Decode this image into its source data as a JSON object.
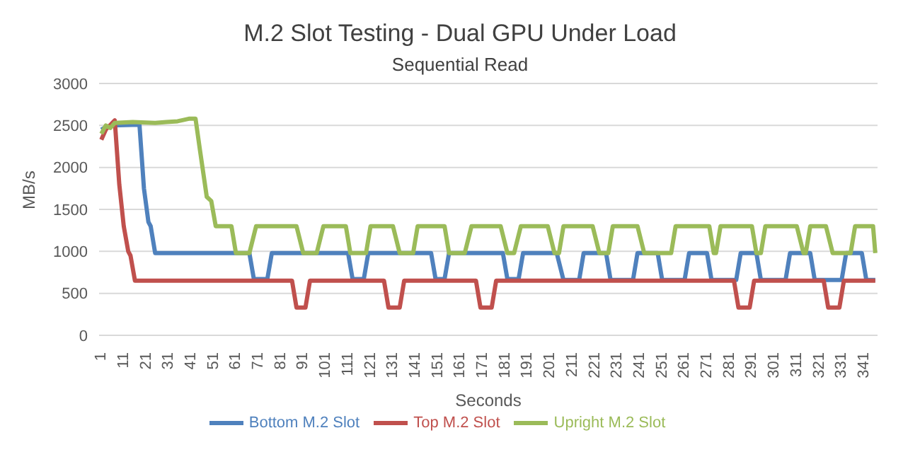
{
  "chart_data": {
    "type": "line",
    "title": "M.2 Slot Testing - Dual GPU Under Load",
    "subtitle": "Sequential Read",
    "xlabel": "Seconds",
    "ylabel": "MB/s",
    "xlim": [
      0,
      347
    ],
    "xticks": [
      1,
      11,
      21,
      31,
      41,
      51,
      61,
      71,
      81,
      91,
      101,
      111,
      121,
      131,
      141,
      151,
      161,
      171,
      181,
      191,
      201,
      211,
      221,
      231,
      241,
      251,
      261,
      271,
      281,
      291,
      301,
      311,
      321,
      331,
      341
    ],
    "ylim": [
      0,
      3000
    ],
    "yticks": [
      0,
      500,
      1000,
      1500,
      2000,
      2500,
      3000
    ],
    "grid": "y",
    "legend": "bottom",
    "marker": "none",
    "line_style": "solid",
    "series": [
      {
        "name": "Bottom M.2 Slot",
        "color": "#4f81bd",
        "x": [
          1,
          3,
          6,
          18,
          20,
          22,
          23,
          25,
          67,
          69,
          75,
          77,
          111,
          113,
          118,
          120,
          148,
          150,
          154,
          156,
          180,
          182,
          187,
          189,
          204,
          207,
          214,
          216,
          226,
          228,
          238,
          240,
          249,
          251,
          261,
          263,
          271,
          273,
          284,
          286,
          293,
          295,
          306,
          308,
          317,
          319,
          331,
          333,
          340,
          342,
          346
        ],
        "values": [
          2450,
          2480,
          2500,
          2510,
          1750,
          1350,
          1300,
          980,
          980,
          670,
          670,
          980,
          980,
          670,
          670,
          980,
          980,
          670,
          670,
          980,
          980,
          670,
          670,
          980,
          980,
          660,
          660,
          980,
          980,
          660,
          660,
          980,
          980,
          660,
          660,
          980,
          980,
          660,
          660,
          980,
          980,
          660,
          660,
          980,
          980,
          660,
          660,
          980,
          980,
          660,
          660
        ]
      },
      {
        "name": "Top M.2 Slot",
        "color": "#c0504d",
        "x": [
          1,
          3,
          7,
          9,
          11,
          13,
          14,
          16,
          86,
          88,
          92,
          94,
          127,
          129,
          134,
          136,
          168,
          170,
          175,
          177,
          283,
          285,
          290,
          292,
          323,
          325,
          330,
          332,
          346
        ],
        "values": [
          2330,
          2450,
          2560,
          1800,
          1300,
          1000,
          950,
          650,
          650,
          330,
          330,
          650,
          650,
          330,
          330,
          650,
          650,
          330,
          330,
          650,
          650,
          330,
          330,
          650,
          650,
          330,
          330,
          650,
          650
        ]
      },
      {
        "name": "Upright M.2 Slot",
        "color": "#9bbb59",
        "x": [
          1,
          3,
          5,
          7,
          15,
          25,
          30,
          35,
          40,
          43,
          45,
          48,
          50,
          52,
          59,
          61,
          67,
          70,
          88,
          91,
          97,
          100,
          110,
          112,
          119,
          121,
          131,
          134,
          140,
          142,
          154,
          156,
          163,
          166,
          179,
          182,
          185,
          188,
          200,
          203,
          205,
          207,
          220,
          223,
          227,
          229,
          240,
          243,
          255,
          257,
          272,
          274,
          275,
          277,
          291,
          293,
          295,
          297,
          311,
          314,
          315,
          317,
          324,
          327,
          335,
          337,
          345,
          346
        ],
        "values": [
          2400,
          2500,
          2470,
          2530,
          2540,
          2530,
          2540,
          2550,
          2580,
          2580,
          2200,
          1650,
          1600,
          1300,
          1300,
          980,
          980,
          1300,
          1300,
          980,
          980,
          1300,
          1300,
          980,
          980,
          1300,
          1300,
          980,
          980,
          1300,
          1300,
          980,
          980,
          1300,
          1300,
          980,
          980,
          1300,
          1300,
          980,
          980,
          1300,
          1300,
          980,
          980,
          1300,
          1300,
          980,
          980,
          1300,
          1300,
          980,
          980,
          1300,
          1300,
          980,
          980,
          1300,
          1300,
          980,
          980,
          1300,
          1300,
          980,
          980,
          1300,
          1300,
          980
        ]
      }
    ]
  }
}
